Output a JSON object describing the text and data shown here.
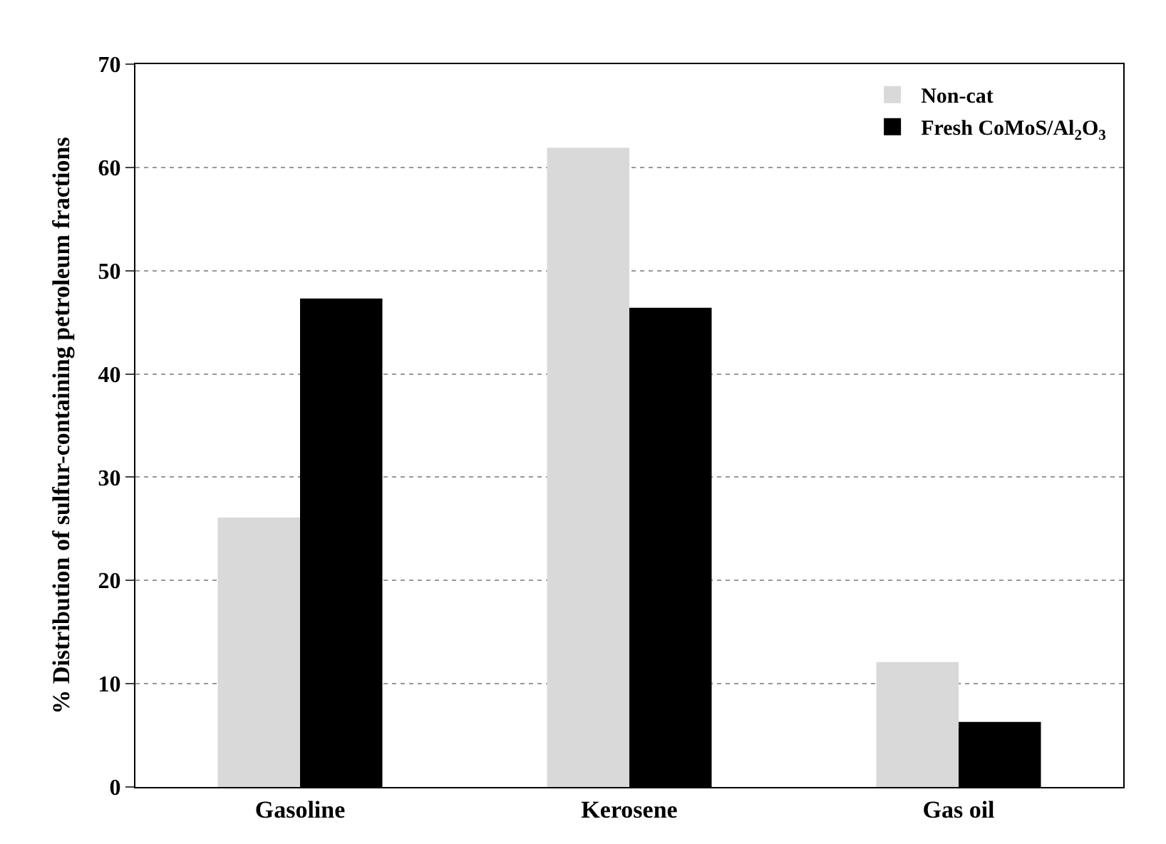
{
  "chart_data": {
    "type": "bar",
    "ylabel": "% Distribution of sulfur-containing petroleum fractions",
    "categories": [
      "Gasoline",
      "Kerosene",
      "Gas oil"
    ],
    "series": [
      {
        "name": "Non-cat",
        "color": "#d9d9d9",
        "values": [
          26.1,
          61.9,
          12.1
        ]
      },
      {
        "name": "Fresh CoMoS/Al$_{2}$O$_{3}$",
        "color": "#000000",
        "values": [
          47.3,
          46.4,
          6.3
        ]
      }
    ],
    "ylim": [
      0,
      70
    ],
    "yticks": [
      0,
      10,
      20,
      30,
      40,
      50,
      60,
      70
    ],
    "grid": "y",
    "legend": "top right"
  }
}
